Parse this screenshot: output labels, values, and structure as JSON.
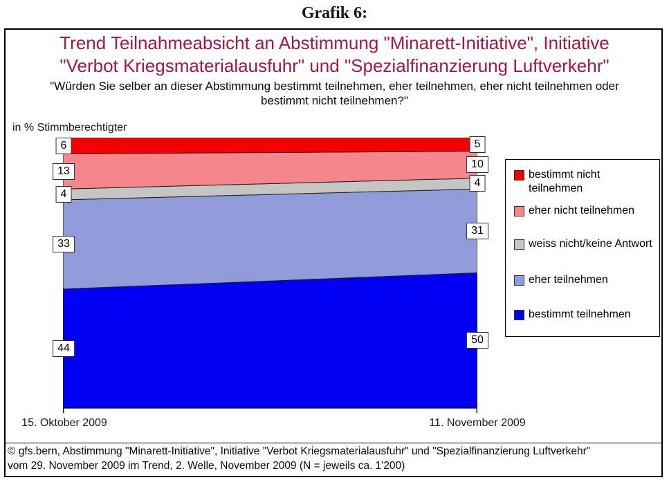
{
  "page_title": "Grafik 6:",
  "header": {
    "title_lines": [
      "Trend Teilnahmeabsicht an Abstimmung \"Minarett-Initiative\", Initiative",
      "\"Verbot Kriegsmaterialausfuhr\" und \"Spezialfinanzierung Luftverkehr\""
    ],
    "title_color": "#A31744",
    "subtitle_lines": [
      "\"Würden Sie selber an dieser Abstimmung bestimmt teilnehmen, eher teilnehmen, eher nicht teilnehmen oder",
      "bestimmt nicht teilnehmen?\""
    ],
    "units_label": "in % Stimmberechtigter"
  },
  "chart_data": {
    "type": "area",
    "stacked": true,
    "categories": [
      "15. Oktober 2009",
      "11. November 2009"
    ],
    "ylim": [
      0,
      100
    ],
    "grid": false,
    "legend_position": "right",
    "stack_order": "first series is bottom of stack",
    "series": [
      {
        "name": "bestimmt teilnehmen",
        "values": [
          44,
          50
        ],
        "color": "#0000F2",
        "legend_lines": [
          "bestimmt teilnehmen"
        ]
      },
      {
        "name": "eher teilnehmen",
        "values": [
          33,
          31
        ],
        "color": "#909BD9",
        "legend_lines": [
          "eher teilnehmen"
        ]
      },
      {
        "name": "weiss nicht/keine Antwort",
        "values": [
          4,
          4
        ],
        "color": "#C5C5C5",
        "legend_lines": [
          "weiss nicht/keine Antwort"
        ]
      },
      {
        "name": "eher nicht teilnehmen",
        "values": [
          13,
          10
        ],
        "color": "#F5878B",
        "legend_lines": [
          "eher nicht teilnehmen"
        ]
      },
      {
        "name": "bestimmt nicht teilnehmen",
        "values": [
          6,
          5
        ],
        "color": "#F40000",
        "legend_lines": [
          "bestimmt nicht",
          "teilnehmen"
        ]
      }
    ]
  },
  "footer": {
    "lines": [
      "© gfs.bern, Abstimmung \"Minarett-Initiative\", Initiative \"Verbot Kriegsmaterialausfuhr\" und \"Spezialfinanzierung Luftverkehr\"",
      "vom 29. November 2009 im Trend, 2. Welle, November 2009 (N = jeweils ca. 1'200)"
    ]
  }
}
